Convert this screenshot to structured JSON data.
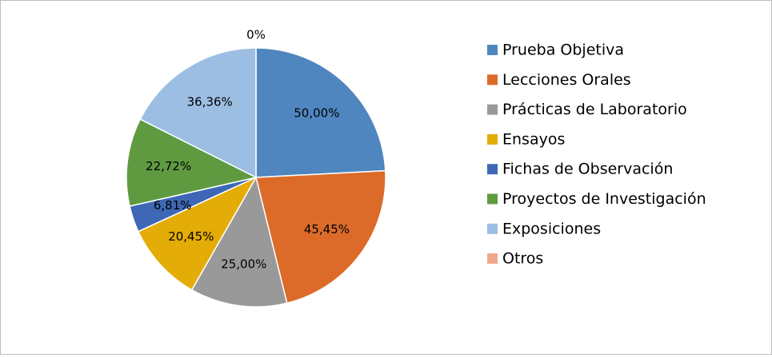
{
  "chart_data": {
    "type": "pie",
    "categories": [
      "Prueba Objetiva",
      "Lecciones Orales",
      "Prácticas de Laboratorio",
      "Ensayos",
      "Fichas de Observación",
      "Proyectos de Investigación",
      "Exposiciones",
      "Otros"
    ],
    "values": [
      50,
      45.45,
      25,
      20.45,
      6.81,
      22.72,
      36.36,
      0
    ],
    "value_labels": [
      "50,00%",
      "45,45%",
      "25,00%",
      "20,45%",
      "6,81%",
      "22,72%",
      "36,36%",
      "0%"
    ],
    "colors": [
      "#4f86c0",
      "#dc6b2a",
      "#999999",
      "#e4ac06",
      "#3e68b5",
      "#5f9a41",
      "#9dbee3",
      "#efa88c"
    ],
    "legend": "right"
  }
}
